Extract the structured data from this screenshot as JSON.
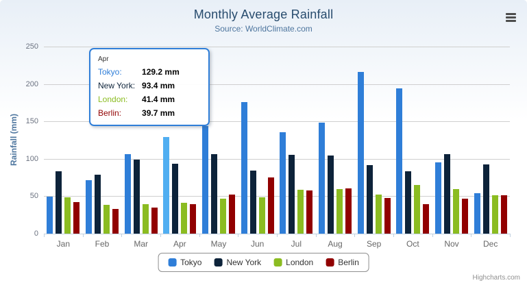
{
  "chart_data": {
    "type": "bar",
    "title": "Monthly Average Rainfall",
    "subtitle": "Source: WorldClimate.com",
    "xlabel": "",
    "ylabel": "Rainfall (mm)",
    "ylim": [
      0,
      250
    ],
    "yticks": [
      0,
      50,
      100,
      150,
      200,
      250
    ],
    "grid": true,
    "legend_position": "bottom",
    "categories": [
      "Jan",
      "Feb",
      "Mar",
      "Apr",
      "May",
      "Jun",
      "Jul",
      "Aug",
      "Sep",
      "Oct",
      "Nov",
      "Dec"
    ],
    "series": [
      {
        "name": "Tokyo",
        "color": "#2f7ed8",
        "values": [
          49.9,
          71.5,
          106.4,
          129.2,
          144.0,
          176.0,
          135.6,
          148.5,
          216.4,
          194.1,
          95.6,
          54.4
        ]
      },
      {
        "name": "New York",
        "color": "#0d233a",
        "values": [
          83.6,
          78.8,
          98.5,
          93.4,
          106.0,
          84.5,
          105.0,
          104.3,
          91.2,
          83.5,
          106.6,
          92.3
        ]
      },
      {
        "name": "London",
        "color": "#8bbc21",
        "values": [
          48.9,
          38.8,
          39.3,
          41.4,
          47.0,
          48.3,
          59.0,
          59.6,
          52.4,
          65.2,
          59.3,
          51.2
        ]
      },
      {
        "name": "Berlin",
        "color": "#910000",
        "values": [
          42.4,
          33.2,
          34.5,
          39.7,
          52.6,
          75.5,
          57.4,
          60.4,
          47.6,
          39.1,
          46.8,
          51.1
        ]
      }
    ]
  },
  "tooltip": {
    "category": "Apr",
    "category_index": 3,
    "hover_series_index": 0,
    "border_color": "#2f7ed8",
    "rows": [
      {
        "name": "Tokyo:",
        "value": "129.2 mm",
        "color": "#2f7ed8"
      },
      {
        "name": "New York:",
        "value": "93.4 mm",
        "color": "#0d233a"
      },
      {
        "name": "London:",
        "value": "41.4 mm",
        "color": "#8bbc21"
      },
      {
        "name": "Berlin:",
        "value": "39.7 mm",
        "color": "#910000"
      }
    ]
  },
  "legend": {
    "items": [
      {
        "label": "Tokyo",
        "color": "#2f7ed8"
      },
      {
        "label": "New York",
        "color": "#0d233a"
      },
      {
        "label": "London",
        "color": "#8bbc21"
      },
      {
        "label": "Berlin",
        "color": "#910000"
      }
    ]
  },
  "credits": "Highcharts.com"
}
